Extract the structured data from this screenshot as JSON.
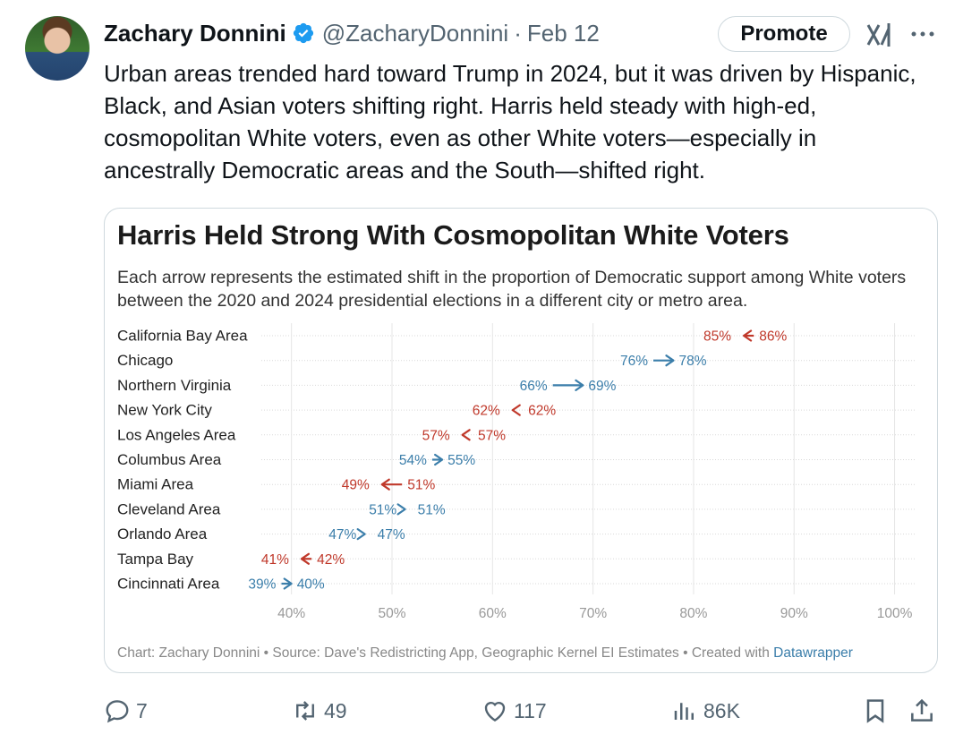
{
  "author": {
    "name": "Zachary Donnini",
    "handle": "@ZacharyDonnini",
    "date": "Feb 12",
    "separator": "·"
  },
  "buttons": {
    "promote": "Promote"
  },
  "tweet_text": "Urban areas trended hard toward Trump in 2024, but it was driven by Hispanic, Black, and Asian voters shifting right. Harris held steady with high-ed, cosmopolitan White voters, even as other White voters—especially in ancestrally Democratic areas and the South—shifted right.",
  "card": {
    "title": "Harris Held Strong With Cosmopolitan White Voters",
    "description": "Each arrow represents the estimated shift in the proportion of Democratic support among White voters between the 2020 and 2024 presidential elections in a different city or metro area.",
    "footer_prefix": "Chart: Zachary Donnini • Source: Dave's Redistricting App, Geographic Kernel EI Estimates • Created with ",
    "footer_link": "Datawrapper"
  },
  "chart_data": {
    "type": "arrow",
    "title": "Harris Held Strong With Cosmopolitan White Voters",
    "xlim": [
      37,
      102
    ],
    "x_ticks": [
      "40%",
      "50%",
      "60%",
      "70%",
      "80%",
      "90%",
      "100%"
    ],
    "x_tick_values": [
      40,
      50,
      60,
      70,
      80,
      90,
      100
    ],
    "grid": "vertical",
    "colors": {
      "decrease": "#c0392b",
      "increase": "#3b7eaa"
    },
    "rows": [
      {
        "label": "California Bay Area",
        "from": 86,
        "to": 85,
        "from_label": "86%",
        "to_label": "85%"
      },
      {
        "label": "Chicago",
        "from": 76,
        "to": 78,
        "from_label": "76%",
        "to_label": "78%"
      },
      {
        "label": "Northern Virginia",
        "from": 66,
        "to": 69,
        "from_label": "66%",
        "to_label": "69%"
      },
      {
        "label": "New York City",
        "from": 62.3,
        "to": 62,
        "from_label": "62%",
        "to_label": "62%"
      },
      {
        "label": "Los Angeles Area",
        "from": 57.3,
        "to": 57,
        "from_label": "57%",
        "to_label": "57%"
      },
      {
        "label": "Columbus Area",
        "from": 54,
        "to": 55,
        "from_label": "54%",
        "to_label": "55%"
      },
      {
        "label": "Miami Area",
        "from": 51,
        "to": 49,
        "from_label": "51%",
        "to_label": "49%"
      },
      {
        "label": "Cleveland Area",
        "from": 51,
        "to": 51.3,
        "from_label": "51%",
        "to_label": "51%"
      },
      {
        "label": "Orlando Area",
        "from": 47,
        "to": 47.3,
        "from_label": "47%",
        "to_label": "47%"
      },
      {
        "label": "Tampa Bay",
        "from": 42,
        "to": 41,
        "from_label": "42%",
        "to_label": "41%"
      },
      {
        "label": "Cincinnati Area",
        "from": 39,
        "to": 40,
        "from_label": "39%",
        "to_label": "40%"
      }
    ]
  },
  "stats": {
    "replies": "7",
    "reposts": "49",
    "likes": "117",
    "views": "86K"
  }
}
